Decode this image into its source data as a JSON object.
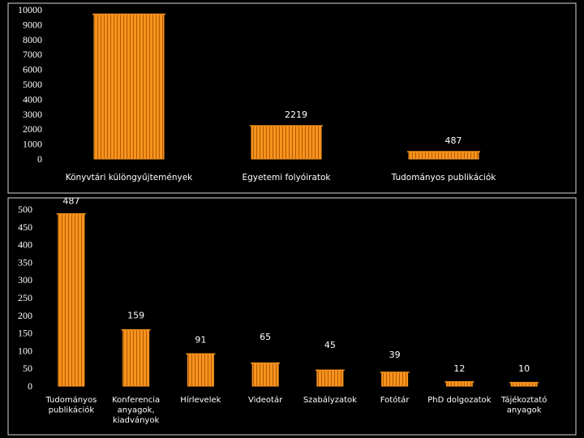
{
  "colors": {
    "background": "#000000",
    "plot_border": "#d9d9d9",
    "bar_fill": "#f7931e",
    "bar_stripe": "#b35a00",
    "text": "#ffffff"
  },
  "chart_data": [
    {
      "type": "bar",
      "title": "",
      "categories": [
        "Könyvtári különgyűjtemények",
        "Egyetemi folyóiratok",
        "Tudományos publikációk"
      ],
      "values": [
        9700,
        2219,
        487
      ],
      "data_labels": [
        "",
        "2219",
        "487"
      ],
      "yticks": [
        "0",
        "1000",
        "2000",
        "3000",
        "4000",
        "5000",
        "6000",
        "7000",
        "8000",
        "9000",
        "10000"
      ],
      "ylim": [
        0,
        10000
      ],
      "xlabel": "",
      "ylabel": ""
    },
    {
      "type": "bar",
      "title": "",
      "categories": [
        [
          "Tudományos",
          "publikációk"
        ],
        [
          "Konferencia",
          "anyagok,",
          "kiadványok"
        ],
        [
          "Hírlevelek"
        ],
        [
          "Videotár"
        ],
        [
          "Szabályzatok"
        ],
        [
          "Fotótár"
        ],
        [
          "PhD dolgozatok"
        ],
        [
          "Tájékoztató",
          "anyagok"
        ]
      ],
      "values": [
        487,
        159,
        91,
        65,
        45,
        39,
        12,
        10
      ],
      "data_labels": [
        "487",
        "159",
        "91",
        "65",
        "45",
        "39",
        "12",
        "10"
      ],
      "yticks": [
        "0",
        "50",
        "100",
        "150",
        "200",
        "250",
        "300",
        "350",
        "400",
        "450",
        "500"
      ],
      "ylim": [
        0,
        500
      ],
      "xlabel": "",
      "ylabel": ""
    }
  ]
}
